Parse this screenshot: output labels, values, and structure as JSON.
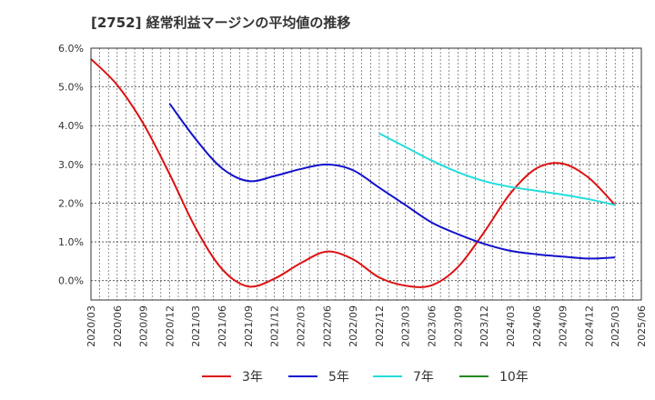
{
  "chart_data": {
    "type": "line",
    "title": "[2752]  経常利益マージンの平均値の推移",
    "xlabel": "",
    "ylabel": "",
    "ylim": [
      -0.5,
      6.0
    ],
    "yticks": [
      "6.0%",
      "5.0%",
      "4.0%",
      "3.0%",
      "2.0%",
      "1.0%",
      "0.0%"
    ],
    "yticks_values": [
      6,
      5,
      4,
      3,
      2,
      1,
      0
    ],
    "xticks": [
      "2020/03",
      "2020/06",
      "2020/09",
      "2020/12",
      "2021/03",
      "2021/06",
      "2021/09",
      "2021/12",
      "2022/03",
      "2022/06",
      "2022/09",
      "2022/12",
      "2023/03",
      "2023/06",
      "2023/09",
      "2023/12",
      "2024/03",
      "2024/06",
      "2024/09",
      "2024/12",
      "2025/03",
      "2025/06"
    ],
    "grid": true,
    "legend_position": "bottom",
    "series": [
      {
        "name": "3年",
        "color": "#dd1111",
        "points": [
          [
            "2020/03",
            5.72
          ],
          [
            "2020/06",
            5.05
          ],
          [
            "2020/09",
            4.05
          ],
          [
            "2020/12",
            2.75
          ],
          [
            "2021/03",
            1.35
          ],
          [
            "2021/06",
            0.3
          ],
          [
            "2021/09",
            -0.15
          ],
          [
            "2021/12",
            0.05
          ],
          [
            "2022/03",
            0.45
          ],
          [
            "2022/06",
            0.75
          ],
          [
            "2022/09",
            0.55
          ],
          [
            "2022/12",
            0.08
          ],
          [
            "2023/03",
            -0.13
          ],
          [
            "2023/06",
            -0.12
          ],
          [
            "2023/09",
            0.35
          ],
          [
            "2023/12",
            1.25
          ],
          [
            "2024/03",
            2.25
          ],
          [
            "2024/06",
            2.9
          ],
          [
            "2024/09",
            3.02
          ],
          [
            "2024/12",
            2.65
          ],
          [
            "2025/03",
            1.95
          ]
        ]
      },
      {
        "name": "5年",
        "color": "#1111cc",
        "points": [
          [
            "2020/12",
            4.57
          ],
          [
            "2021/03",
            3.65
          ],
          [
            "2021/06",
            2.9
          ],
          [
            "2021/09",
            2.57
          ],
          [
            "2021/12",
            2.7
          ],
          [
            "2022/03",
            2.88
          ],
          [
            "2022/06",
            3.0
          ],
          [
            "2022/09",
            2.85
          ],
          [
            "2022/12",
            2.4
          ],
          [
            "2023/03",
            1.95
          ],
          [
            "2023/06",
            1.5
          ],
          [
            "2023/09",
            1.2
          ],
          [
            "2023/12",
            0.95
          ],
          [
            "2024/03",
            0.77
          ],
          [
            "2024/06",
            0.68
          ],
          [
            "2024/09",
            0.62
          ],
          [
            "2024/12",
            0.57
          ],
          [
            "2025/03",
            0.6
          ]
        ]
      },
      {
        "name": "7年",
        "color": "#22dddd",
        "points": [
          [
            "2022/12",
            3.8
          ],
          [
            "2023/03",
            3.45
          ],
          [
            "2023/06",
            3.1
          ],
          [
            "2023/09",
            2.8
          ],
          [
            "2023/12",
            2.57
          ],
          [
            "2024/03",
            2.42
          ],
          [
            "2024/06",
            2.32
          ],
          [
            "2024/09",
            2.22
          ],
          [
            "2024/12",
            2.1
          ],
          [
            "2025/03",
            1.95
          ]
        ]
      },
      {
        "name": "10年",
        "color": "#228822",
        "points": []
      }
    ]
  }
}
